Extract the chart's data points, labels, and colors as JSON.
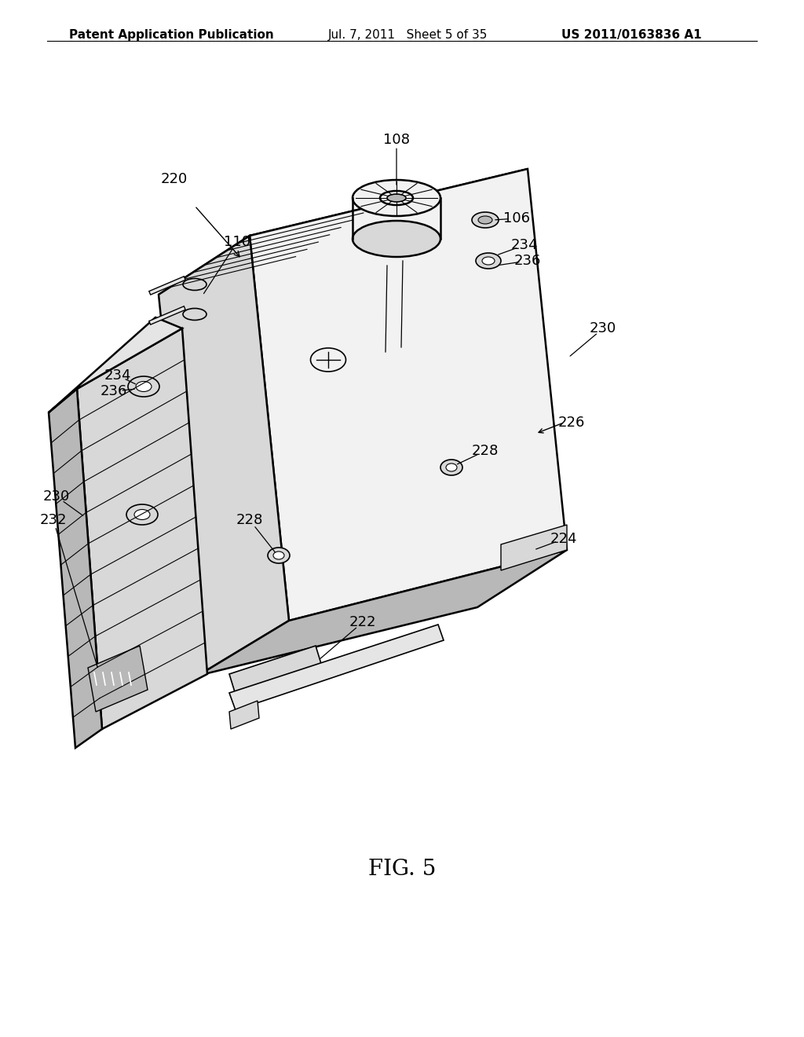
{
  "bg_color": "#ffffff",
  "header_left": "Patent Application Publication",
  "header_mid": "Jul. 7, 2011   Sheet 5 of 35",
  "header_right": "US 2011/0163836 A1",
  "header_fontsize": 11,
  "figure_label": "FIG. 5",
  "figure_label_fontsize": 20,
  "line_color": "#000000",
  "text_color": "#000000",
  "face_light": "#f2f2f2",
  "face_mid": "#d8d8d8",
  "face_dark": "#b8b8b8",
  "top_face": "#e5e5e5",
  "lw_main": 1.8,
  "lw_thin": 0.8,
  "lw_med": 1.2,
  "ann_fontsize": 13
}
